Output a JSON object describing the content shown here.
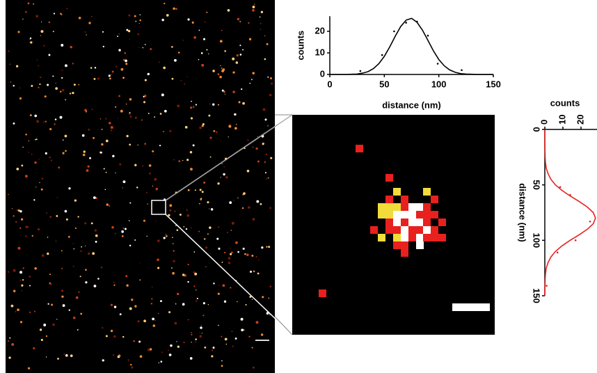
{
  "chart_data": [
    {
      "type": "scatter",
      "xlabel": "distance (nm)",
      "ylabel": "counts",
      "xlim": [
        0,
        150
      ],
      "xticks": [
        0,
        50,
        100,
        150
      ],
      "ylim": [
        0,
        27
      ],
      "yticks": [
        0,
        10,
        20
      ],
      "rotated": false,
      "series": [
        {
          "color": "#000000",
          "style": "points",
          "x": [
            28,
            48,
            59,
            70,
            80,
            90,
            99,
            121
          ],
          "values": [
            1.6,
            9,
            20,
            24,
            24.5,
            18,
            5,
            2
          ]
        },
        {
          "color": "#000000",
          "style": "line",
          "x": [
            0,
            5,
            10,
            15,
            20,
            25,
            30,
            35,
            40,
            45,
            50,
            55,
            60,
            65,
            70,
            75,
            80,
            85,
            90,
            95,
            100,
            105,
            110,
            115,
            120,
            125,
            130,
            135,
            140,
            145,
            150
          ],
          "values": [
            0,
            0,
            0,
            0,
            0.1,
            0.2,
            0.6,
            1.3,
            2.7,
            5.0,
            8.4,
            12.8,
            17.7,
            22.2,
            25.2,
            26.0,
            24.2,
            20.5,
            15.8,
            11.0,
            6.9,
            4.0,
            2.1,
            1.0,
            0.4,
            0.2,
            0.1,
            0,
            0,
            0,
            0
          ]
        }
      ]
    },
    {
      "type": "scatter",
      "xlabel": "distance (nm)",
      "ylabel": "counts",
      "xlim": [
        0,
        150
      ],
      "xticks": [
        0,
        50,
        100,
        150
      ],
      "ylim": [
        0,
        30
      ],
      "yticks": [
        0,
        10,
        20
      ],
      "rotated": true,
      "series": [
        {
          "color": "#e8201e",
          "style": "points",
          "x": [
            52,
            59,
            83,
            100,
            111,
            141
          ],
          "values": [
            8.5,
            14,
            25,
            17,
            7,
            1
          ]
        },
        {
          "color": "#e8201e",
          "style": "line",
          "x": [
            0,
            5,
            10,
            15,
            20,
            25,
            30,
            35,
            40,
            45,
            50,
            55,
            60,
            65,
            70,
            75,
            80,
            85,
            90,
            95,
            100,
            105,
            110,
            115,
            120,
            125,
            130,
            135,
            140,
            145,
            150
          ],
          "values": [
            0,
            0,
            0,
            0,
            0.1,
            0.2,
            0.4,
            0.8,
            1.8,
            3.4,
            5.9,
            9.5,
            14.0,
            19.0,
            23.5,
            26.8,
            28,
            26.8,
            23.5,
            19.0,
            14.0,
            9.5,
            5.9,
            3.4,
            1.8,
            0.8,
            0.4,
            0.2,
            0.1,
            0,
            0
          ]
        }
      ]
    }
  ]
}
